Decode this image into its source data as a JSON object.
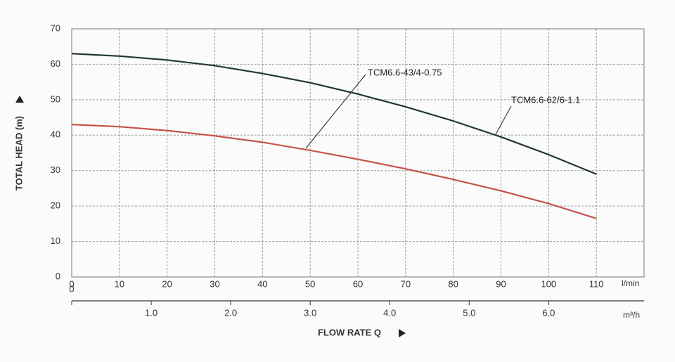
{
  "chart_data": {
    "type": "line",
    "xlabel": "FLOW RATE Q",
    "ylabel": "TOTAL HEAD (m)",
    "x_unit": "l/min",
    "x2_unit": "m³/h",
    "x": [
      0,
      10,
      20,
      30,
      40,
      50,
      60,
      70,
      80,
      90,
      100,
      110
    ],
    "series": [
      {
        "name": "TCM6.6-62/6-1.1",
        "color": "#203a2e",
        "values": [
          63,
          62.3,
          61.2,
          59.6,
          57.4,
          54.8,
          51.6,
          48,
          44,
          39.5,
          34.5,
          29
        ]
      },
      {
        "name": "TCM6.6-43/4-0.75",
        "color": "#c4524a",
        "values": [
          43,
          42.4,
          41.3,
          39.8,
          38,
          35.7,
          33.2,
          30.5,
          27.5,
          24.3,
          20.7,
          16.5
        ]
      }
    ],
    "xlim": [
      0,
      120
    ],
    "xticks": [
      0,
      10,
      20,
      30,
      40,
      50,
      60,
      70,
      80,
      90,
      100,
      110
    ],
    "x2lim": [
      0,
      7.2
    ],
    "x2ticks": [
      0,
      {
        "value": 1,
        "label": "1.0"
      },
      {
        "value": 2,
        "label": "2.0"
      },
      {
        "value": 3,
        "label": "3.0"
      },
      {
        "value": 4,
        "label": "4.0"
      },
      {
        "value": 5,
        "label": "5.0"
      },
      {
        "value": 6,
        "label": "6.0"
      }
    ],
    "ylim": [
      0,
      70
    ],
    "yticks": [
      0,
      10,
      20,
      30,
      40,
      50,
      60,
      70
    ],
    "grid": true
  }
}
